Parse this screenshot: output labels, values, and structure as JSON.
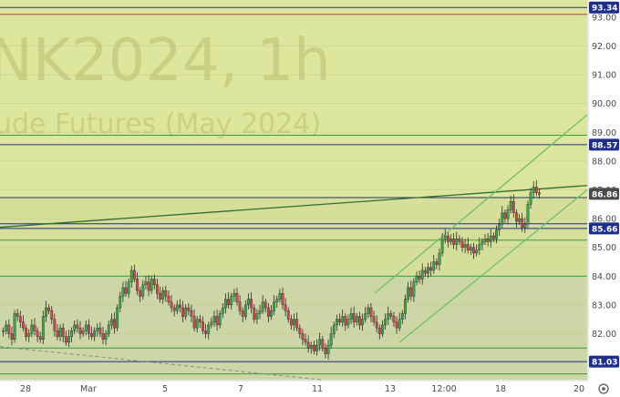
{
  "chart_data": {
    "type": "candlestick",
    "watermark": {
      "symbol": "NK2024, 1h",
      "description": "ude Futures (May 2024)"
    },
    "ylim": [
      80.4,
      93.6
    ],
    "y_ticks": [
      81,
      82,
      83,
      84,
      85,
      86,
      87,
      88,
      89,
      90,
      91,
      92,
      93
    ],
    "y_tick_labels": [
      "81.00",
      "82.00",
      "83.00",
      "84.00",
      "85.00",
      "86.00",
      "87.00",
      "88.00",
      "89.00",
      "90.00",
      "91.00",
      "92.00",
      "93.00"
    ],
    "x_ticks": [
      {
        "label": "28"
      },
      {
        "label": "Mar"
      },
      {
        "label": "5"
      },
      {
        "label": "7"
      },
      {
        "label": "11"
      },
      {
        "label": "13"
      },
      {
        "label": "12:00"
      },
      {
        "label": "18"
      },
      {
        "label": "20"
      }
    ],
    "price_labels": [
      {
        "value": 93.34,
        "text": "93.34",
        "color": "#1d2f8a"
      },
      {
        "value": 88.57,
        "text": "88.57",
        "color": "#1d2f8a"
      },
      {
        "value": 86.86,
        "text": "86.86",
        "color": "#4a4a4a"
      },
      {
        "value": 85.66,
        "text": "85.66",
        "color": "#1d2f8a"
      },
      {
        "value": 81.03,
        "text": "81.03",
        "color": "#1d2f8a"
      }
    ],
    "horizontal_levels": [
      {
        "value": 93.34,
        "color": "#1d2f8a"
      },
      {
        "value": 93.1,
        "color": "#b04040"
      },
      {
        "value": 88.9,
        "color": "#3a9a3a"
      },
      {
        "value": 88.57,
        "color": "#1d2f8a"
      },
      {
        "value": 86.73,
        "color": "#1d2f8a"
      },
      {
        "value": 85.82,
        "color": "#1d2f8a"
      },
      {
        "value": 85.66,
        "color": "#1d2f8a"
      },
      {
        "value": 85.25,
        "color": "#3a9a3a"
      },
      {
        "value": 84.0,
        "color": "#3a9a3a"
      },
      {
        "value": 81.5,
        "color": "#3a9a3a"
      },
      {
        "value": 81.03,
        "color": "#1d2f8a"
      },
      {
        "value": 80.6,
        "color": "#3a9a3a"
      }
    ],
    "trend_lines": [
      {
        "from": {
          "t": 0,
          "v": 85.7
        },
        "to": {
          "t": 216,
          "v": 87.15
        },
        "color": "#2f6e2f"
      },
      {
        "from": {
          "t": 138,
          "v": 83.42
        },
        "to": {
          "t": 216,
          "v": 89.61
        },
        "color": "#6cc06c"
      },
      {
        "from": {
          "t": 147,
          "v": 81.7
        },
        "to": {
          "t": 216,
          "v": 87.0
        },
        "color": "#6cc06c"
      }
    ],
    "dashed_line": {
      "from": {
        "t": 0,
        "v": 81.55
      },
      "to": {
        "t": 118,
        "v": 80.4
      },
      "color": "#8a8a8a"
    },
    "background_zones": [
      {
        "from": 86.73,
        "to": 93.6,
        "color": "#dde69d"
      },
      {
        "from": 84.0,
        "to": 86.73,
        "color": "#d6df9a"
      },
      {
        "from": 80.4,
        "to": 84.0,
        "color": "#cdd6a6"
      }
    ],
    "candle_colors": {
      "up": "#3aa84a",
      "down": "#d9434f"
    },
    "close_series": [
      82.1,
      82.3,
      82.0,
      81.8,
      82.7,
      82.6,
      82.4,
      82.2,
      81.9,
      82.0,
      82.3,
      82.1,
      81.9,
      81.8,
      82.6,
      82.9,
      82.8,
      82.5,
      82.1,
      81.9,
      82.2,
      81.9,
      81.7,
      81.9,
      82.1,
      82.3,
      82.2,
      82.0,
      82.1,
      82.3,
      82.0,
      81.9,
      82.1,
      82.2,
      82.0,
      81.8,
      82.0,
      82.3,
      82.5,
      82.2,
      82.9,
      83.3,
      83.6,
      83.4,
      83.8,
      84.2,
      83.9,
      83.5,
      83.3,
      83.7,
      83.8,
      83.5,
      83.9,
      83.7,
      83.4,
      83.2,
      83.5,
      83.3,
      83.1,
      82.9,
      82.8,
      83.0,
      82.9,
      82.6,
      82.9,
      82.8,
      82.6,
      82.2,
      82.5,
      82.4,
      82.1,
      82.0,
      82.3,
      82.4,
      82.6,
      82.3,
      82.7,
      82.9,
      83.2,
      83.0,
      83.3,
      83.4,
      83.1,
      82.8,
      82.6,
      83.0,
      83.2,
      82.9,
      82.5,
      82.7,
      82.8,
      83.1,
      82.9,
      82.6,
      82.8,
      83.1,
      83.2,
      83.4,
      83.0,
      82.8,
      82.5,
      82.3,
      82.5,
      82.2,
      82.0,
      81.8,
      81.7,
      81.5,
      81.6,
      81.4,
      81.6,
      81.8,
      81.5,
      81.3,
      81.6,
      82.0,
      82.3,
      82.5,
      82.4,
      82.6,
      82.3,
      82.5,
      82.7,
      82.4,
      82.6,
      82.3,
      82.5,
      82.7,
      82.9,
      82.6,
      82.4,
      82.2,
      82.0,
      82.3,
      82.5,
      82.7,
      82.6,
      82.4,
      82.2,
      82.5,
      82.7,
      83.2,
      83.6,
      83.3,
      83.8,
      84.0,
      83.9,
      84.2,
      84.1,
      84.3,
      84.2,
      84.5,
      84.4,
      84.8,
      85.3,
      85.4,
      85.2,
      85.3,
      85.1,
      85.3,
      85.2,
      85.0,
      85.1,
      84.9,
      85.0,
      84.8,
      84.9,
      85.1,
      85.2,
      85.3,
      85.2,
      85.4,
      85.3,
      85.6,
      85.8,
      86.2,
      86.0,
      86.3,
      86.6,
      86.2,
      85.9,
      86.0,
      85.7,
      85.8,
      86.5,
      86.9,
      87.1,
      86.9,
      86.85
    ]
  }
}
